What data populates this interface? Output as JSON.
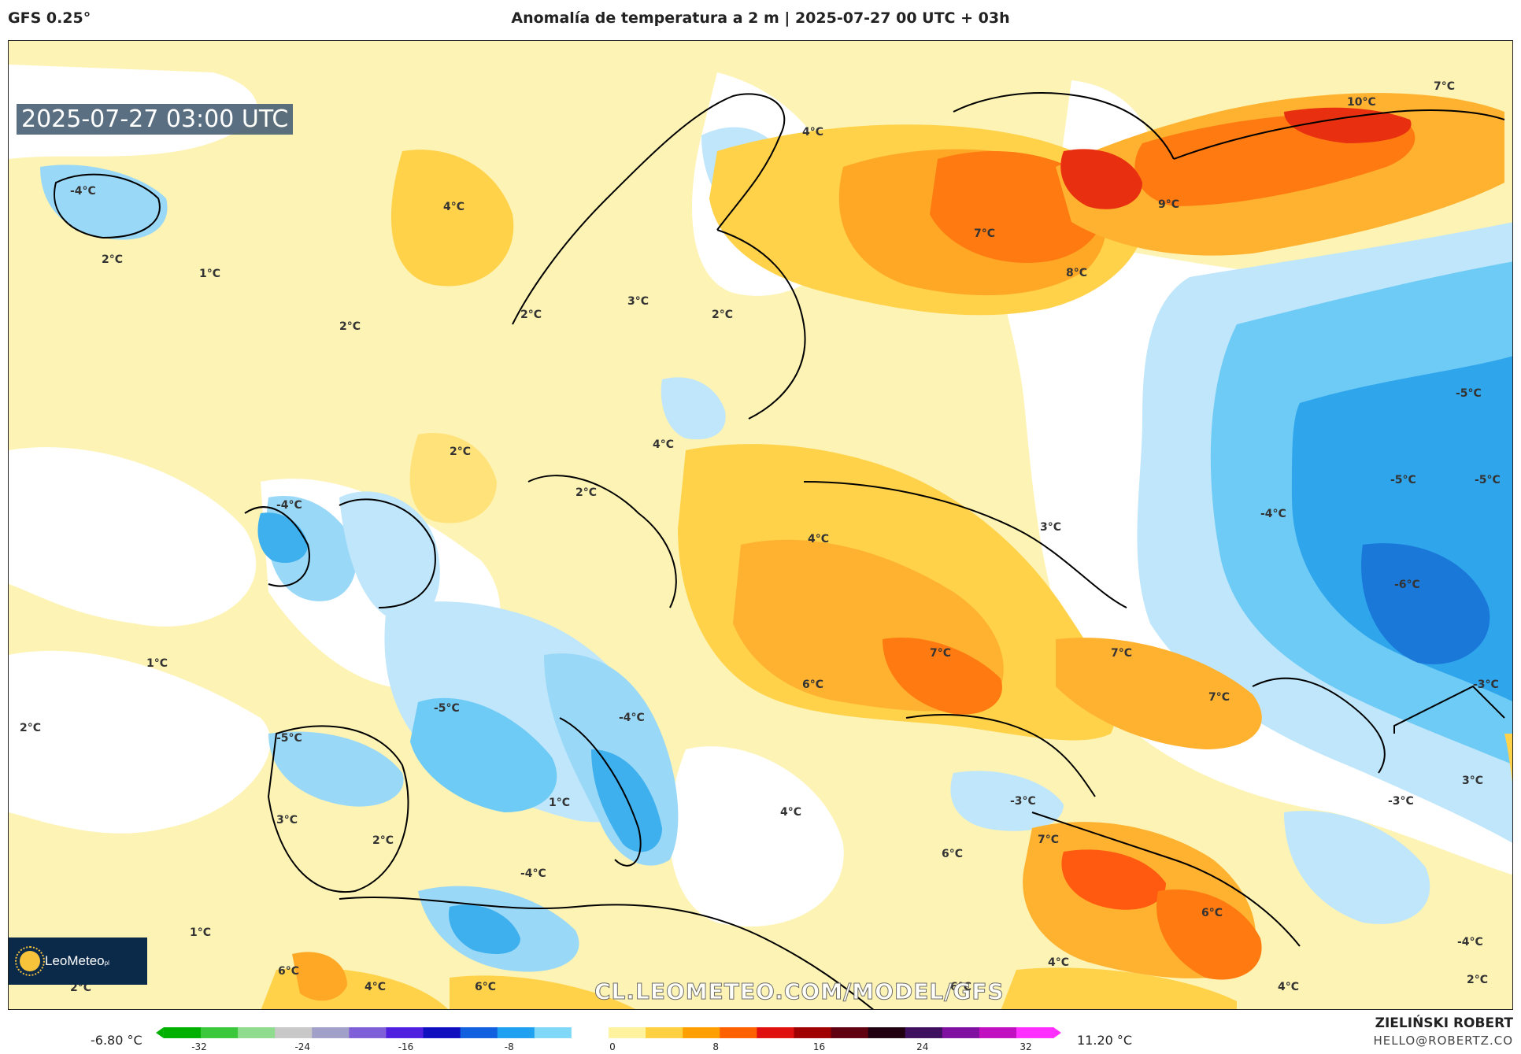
{
  "header": {
    "model": "GFS 0.25°",
    "title": "Anomalía de temperatura a 2 m | 2025-07-27 00 UTC + 03h"
  },
  "map": {
    "timestamp": "2025-07-27 03:00 UTC",
    "watermark": "CL.LEOMETEO.COM/MODEL/GFS",
    "logo": {
      "name": "LeoMeteo",
      "suffix": "pl"
    },
    "labels": [
      {
        "id": "l1",
        "text": "-4°C"
      },
      {
        "id": "l2",
        "text": "2°C"
      },
      {
        "id": "l3",
        "text": "1°C"
      },
      {
        "id": "l4",
        "text": "4°C"
      },
      {
        "id": "l5",
        "text": "2°C"
      },
      {
        "id": "l6",
        "text": "4°C"
      },
      {
        "id": "l7",
        "text": "7°C"
      },
      {
        "id": "l8",
        "text": "9°C"
      },
      {
        "id": "l9",
        "text": "10°C"
      },
      {
        "id": "l10",
        "text": "7°C"
      },
      {
        "id": "l11",
        "text": "8°C"
      },
      {
        "id": "l12",
        "text": "2°C"
      },
      {
        "id": "l13",
        "text": "3°C"
      },
      {
        "id": "l14",
        "text": "2°C"
      },
      {
        "id": "l15",
        "text": "2°C"
      },
      {
        "id": "l16",
        "text": "4°C"
      },
      {
        "id": "l17",
        "text": "2°C"
      },
      {
        "id": "l18",
        "text": "-4°C"
      },
      {
        "id": "l19",
        "text": "4°C"
      },
      {
        "id": "l20",
        "text": "3°C"
      },
      {
        "id": "l21",
        "text": "-5°C"
      },
      {
        "id": "l22",
        "text": "-5°C"
      },
      {
        "id": "l23",
        "text": "-5°C"
      },
      {
        "id": "l24",
        "text": "-4°C"
      },
      {
        "id": "l25",
        "text": "-6°C"
      },
      {
        "id": "l26",
        "text": "1°C"
      },
      {
        "id": "l27",
        "text": "2°C"
      },
      {
        "id": "l28",
        "text": "-5°C"
      },
      {
        "id": "l29",
        "text": "-4°C"
      },
      {
        "id": "l30",
        "text": "6°C"
      },
      {
        "id": "l31",
        "text": "7°C"
      },
      {
        "id": "l32",
        "text": "7°C"
      },
      {
        "id": "l33",
        "text": "7°C"
      },
      {
        "id": "l34",
        "text": "-3°C"
      },
      {
        "id": "l35",
        "text": "-5°C"
      },
      {
        "id": "l36",
        "text": "3°C"
      },
      {
        "id": "l37",
        "text": "1°C"
      },
      {
        "id": "l38",
        "text": "4°C"
      },
      {
        "id": "l39",
        "text": "-3°C"
      },
      {
        "id": "l40",
        "text": "-3°C"
      },
      {
        "id": "l41",
        "text": "3°C"
      },
      {
        "id": "l42",
        "text": "2°C"
      },
      {
        "id": "l43",
        "text": "7°C"
      },
      {
        "id": "l44",
        "text": "6°C"
      },
      {
        "id": "l45",
        "text": "-4°C"
      },
      {
        "id": "l46",
        "text": "6°C"
      },
      {
        "id": "l47",
        "text": "1°C"
      },
      {
        "id": "l48",
        "text": "-4°C"
      },
      {
        "id": "l49",
        "text": "6°C"
      },
      {
        "id": "l50",
        "text": "2°C"
      },
      {
        "id": "l51",
        "text": "4°C"
      },
      {
        "id": "l52",
        "text": "6°C"
      },
      {
        "id": "l53",
        "text": "6°C"
      },
      {
        "id": "l54",
        "text": "4°C"
      },
      {
        "id": "l55",
        "text": "4°C"
      },
      {
        "id": "l56",
        "text": "2°C"
      }
    ]
  },
  "colorbar": {
    "min_label": "-6.80 °C",
    "max_label": "11.20 °C",
    "ticks": [
      "-32",
      "-24",
      "-16",
      "-8",
      "0",
      "8",
      "16",
      "24",
      "32"
    ],
    "colors": [
      "#00b000",
      "#3cc83c",
      "#8fdc8f",
      "#c8c8c8",
      "#a0a0c8",
      "#8060d8",
      "#5020e0",
      "#1010c0",
      "#1060e0",
      "#20a0f0",
      "#80d8f8",
      "#ffffff",
      "#fff3a0",
      "#ffd040",
      "#ffa000",
      "#ff6000",
      "#e01010",
      "#a00000",
      "#600010",
      "#200010",
      "#401060",
      "#8010a0",
      "#c010c0",
      "#ff30ff"
    ]
  },
  "footer": {
    "author": "ZIELIŃSKI ROBERT",
    "email": "HELLO@ROBERTZ.CO"
  }
}
